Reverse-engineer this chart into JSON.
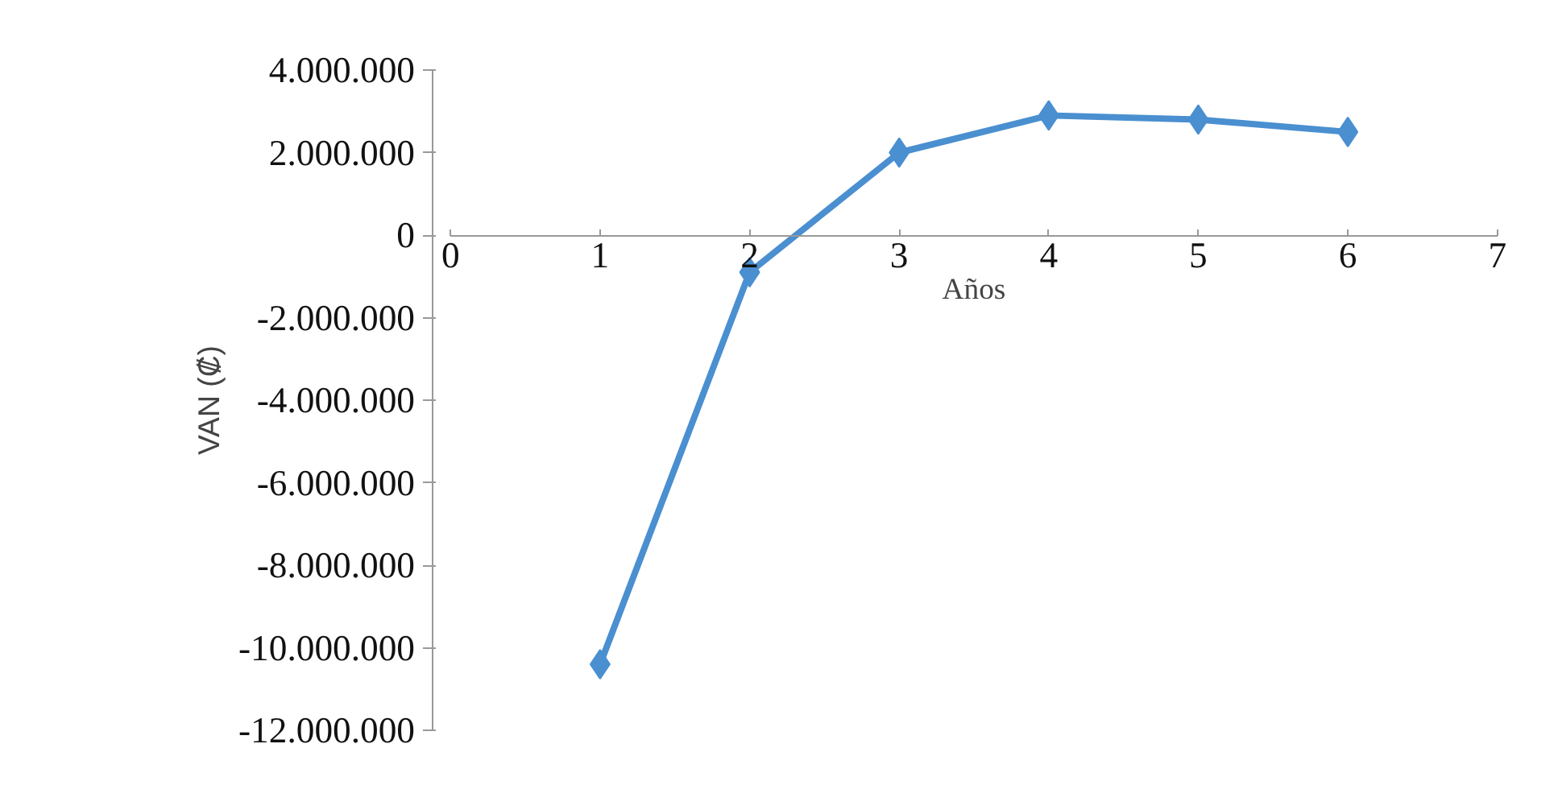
{
  "chart_data": {
    "type": "line",
    "xlabel": "Años",
    "ylabel": "VAN (₡)",
    "x": [
      1,
      2,
      3,
      4,
      5,
      6
    ],
    "series": [
      {
        "color": "#4a8fd0",
        "values": [
          -10400000,
          -900000,
          2000000,
          2900000,
          2800000,
          2500000
        ]
      }
    ],
    "xlim": [
      0,
      7
    ],
    "xticks": [
      0,
      1,
      2,
      3,
      4,
      5,
      6,
      7
    ],
    "ylim": [
      -12000000,
      4000000
    ],
    "yticks": [
      {
        "value": -12000000,
        "label": "-12.000.000"
      },
      {
        "value": -10000000,
        "label": "-10.000.000"
      },
      {
        "value": -8000000,
        "label": "-8.000.000"
      },
      {
        "value": -6000000,
        "label": "-6.000.000"
      },
      {
        "value": -4000000,
        "label": "-4.000.000"
      },
      {
        "value": -2000000,
        "label": "-2.000.000"
      },
      {
        "value": 0,
        "label": "0"
      },
      {
        "value": 2000000,
        "label": "2.000.000"
      },
      {
        "value": 4000000,
        "label": "4.000.000"
      }
    ],
    "grid": false,
    "marker": "diamond",
    "line_style": "solid"
  }
}
